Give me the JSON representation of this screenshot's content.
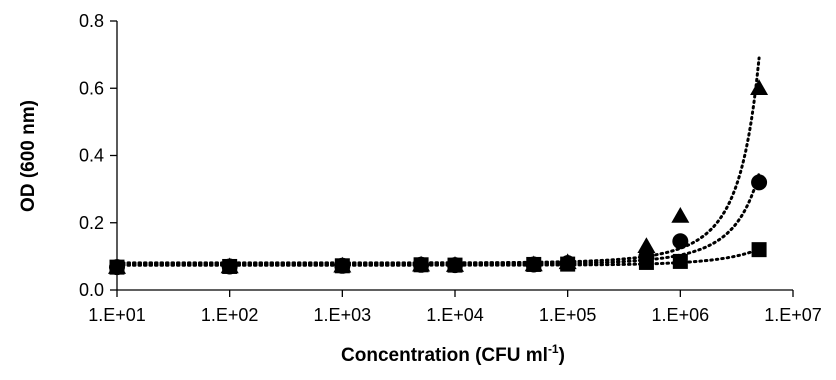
{
  "chart_data": {
    "type": "scatter",
    "title": "",
    "xlabel": "Concentration (CFU ml",
    "xlabel_superscript": "-1",
    "xlabel_suffix": ")",
    "ylabel": "OD (600 nm)",
    "x_scale": "log",
    "xlim": [
      10,
      10000000
    ],
    "ylim": [
      0,
      0.8
    ],
    "x_tick_values": [
      10,
      100,
      1000,
      10000,
      100000,
      1000000,
      10000000
    ],
    "x_ticks": [
      "1.E+01",
      "1.E+02",
      "1.E+03",
      "1.E+04",
      "1.E+05",
      "1.E+06",
      "1.E+07"
    ],
    "y_tick_values": [
      0,
      0.2,
      0.4,
      0.6,
      0.8
    ],
    "y_ticks": [
      "0.0",
      "0.2",
      "0.4",
      "0.6",
      "0.8"
    ],
    "grid": false,
    "legend": "none",
    "trendlines": "dotted exponential",
    "series": [
      {
        "marker": "triangle",
        "color": "#000000",
        "x": [
          10,
          100,
          1000,
          5000,
          10000,
          50000,
          100000,
          500000,
          1000000,
          5000000
        ],
        "y": [
          0.068,
          0.07,
          0.072,
          0.075,
          0.074,
          0.076,
          0.082,
          0.13,
          0.22,
          0.6
        ]
      },
      {
        "marker": "circle",
        "color": "#000000",
        "x": [
          10,
          100,
          1000,
          5000,
          10000,
          50000,
          100000,
          500000,
          1000000,
          5000000
        ],
        "y": [
          0.068,
          0.07,
          0.072,
          0.075,
          0.074,
          0.076,
          0.08,
          0.1,
          0.145,
          0.32
        ]
      },
      {
        "marker": "square",
        "color": "#000000",
        "x": [
          10,
          100,
          1000,
          5000,
          10000,
          50000,
          100000,
          500000,
          1000000,
          5000000
        ],
        "y": [
          0.068,
          0.07,
          0.072,
          0.075,
          0.074,
          0.076,
          0.077,
          0.082,
          0.085,
          0.12
        ]
      }
    ]
  }
}
